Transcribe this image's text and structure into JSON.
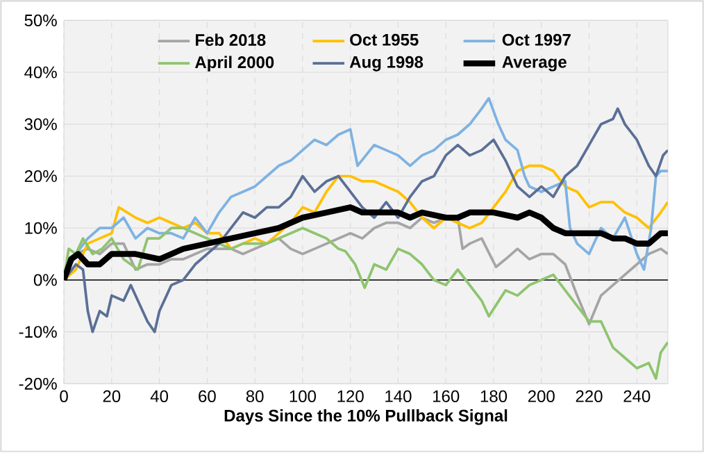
{
  "chart_data": {
    "type": "line",
    "xlabel": "Days Since the 10% Pullback Signal",
    "xlim": [
      0,
      253
    ],
    "xticks": [
      0,
      20,
      40,
      60,
      80,
      100,
      120,
      140,
      160,
      180,
      200,
      220,
      240
    ],
    "ylim": [
      -20,
      50
    ],
    "yticks": [
      {
        "value": -20,
        "label": "-20%"
      },
      {
        "value": -10,
        "label": "-10%"
      },
      {
        "value": 0,
        "label": "0%"
      },
      {
        "value": 10,
        "label": "10%"
      },
      {
        "value": 20,
        "label": "20%"
      },
      {
        "value": 30,
        "label": "30%"
      },
      {
        "value": 40,
        "label": "40%"
      },
      {
        "value": 50,
        "label": "50%"
      }
    ],
    "grid": true,
    "legend": "top",
    "ref_lines": [
      {
        "axis": "y",
        "value": 0,
        "color": "#000000"
      }
    ],
    "series": [
      {
        "name": "Feb 2018",
        "color": "#a5a5a5",
        "x": [
          0,
          5,
          10,
          15,
          20,
          25,
          30,
          35,
          40,
          45,
          50,
          55,
          60,
          65,
          70,
          75,
          80,
          85,
          90,
          95,
          100,
          105,
          110,
          115,
          120,
          125,
          130,
          135,
          140,
          145,
          150,
          155,
          160,
          165,
          167,
          170,
          175,
          181,
          185,
          190,
          195,
          200,
          205,
          210,
          215,
          220,
          225,
          230,
          235,
          240,
          245,
          250,
          253
        ],
        "values": [
          0,
          5,
          6,
          5,
          7,
          7,
          2,
          3,
          3,
          4,
          4,
          5,
          6,
          6,
          6,
          5,
          6,
          7,
          8,
          6,
          5,
          6,
          7,
          8,
          9,
          8,
          10,
          11,
          11,
          10,
          12,
          11,
          12,
          12,
          6,
          7,
          8,
          2.5,
          4,
          6,
          4,
          5,
          5,
          3,
          -3,
          -8.5,
          -3,
          -1,
          1,
          3,
          5,
          6,
          5
        ]
      },
      {
        "name": "Oct 1955",
        "color": "#ffc000",
        "x": [
          0,
          5,
          10,
          15,
          20,
          23,
          30,
          35,
          40,
          45,
          50,
          55,
          60,
          65,
          70,
          75,
          80,
          85,
          90,
          95,
          100,
          105,
          110,
          115,
          120,
          125,
          130,
          135,
          140,
          145,
          150,
          155,
          160,
          165,
          170,
          175,
          180,
          185,
          190,
          195,
          200,
          205,
          210,
          215,
          220,
          225,
          230,
          235,
          240,
          245,
          250,
          253
        ],
        "values": [
          0,
          2,
          7,
          8,
          9,
          14,
          12,
          11,
          12,
          11,
          10,
          11,
          9,
          9,
          6,
          7,
          8,
          7,
          9,
          11,
          14,
          13,
          17,
          20,
          20,
          19,
          19,
          18,
          17,
          15,
          12,
          10,
          12,
          11,
          10,
          11,
          14,
          17,
          21,
          22,
          22,
          21,
          18,
          17,
          14,
          15,
          15,
          13,
          12,
          10,
          13,
          15
        ]
      },
      {
        "name": "Oct 1997",
        "color": "#7eb2e2",
        "x": [
          0,
          5,
          10,
          15,
          20,
          25,
          30,
          35,
          40,
          45,
          50,
          55,
          60,
          65,
          70,
          75,
          80,
          85,
          90,
          95,
          100,
          105,
          110,
          115,
          120,
          123,
          130,
          135,
          140,
          145,
          150,
          155,
          160,
          165,
          170,
          175,
          178,
          182,
          185,
          190,
          193,
          195,
          200,
          205,
          210,
          212,
          215,
          220,
          225,
          230,
          235,
          240,
          243,
          246,
          248,
          250,
          253
        ],
        "values": [
          0,
          5,
          8,
          10,
          10,
          12,
          8,
          10,
          9,
          9,
          8,
          12,
          9,
          13,
          16,
          17,
          18,
          20,
          22,
          23,
          25,
          27,
          26,
          28,
          29,
          22,
          26,
          25,
          24,
          22,
          24,
          25,
          27,
          28,
          30,
          33,
          35,
          30,
          27,
          25,
          20,
          18,
          17,
          18,
          19,
          10,
          7,
          5,
          10,
          8,
          12,
          5,
          2,
          10,
          20,
          21,
          21
        ]
      },
      {
        "name": "April 2000",
        "color": "#8fc46f",
        "x": [
          0,
          2,
          5,
          8,
          12,
          16,
          20,
          25,
          31,
          35,
          40,
          45,
          50,
          55,
          60,
          65,
          70,
          75,
          80,
          85,
          90,
          95,
          100,
          105,
          110,
          115,
          118,
          122,
          126,
          130,
          135,
          140,
          145,
          150,
          155,
          160,
          165,
          170,
          175,
          178,
          185,
          190,
          195,
          200,
          205,
          210,
          215,
          220,
          225,
          230,
          235,
          240,
          245,
          248,
          250,
          253
        ],
        "values": [
          0,
          6,
          5,
          8,
          5,
          6,
          8,
          4,
          2,
          8,
          8,
          10,
          10,
          9,
          8,
          7,
          6,
          7,
          7,
          7,
          8,
          9,
          10,
          9,
          8,
          6,
          5.5,
          3,
          -1.5,
          3,
          2,
          6,
          5,
          3,
          0,
          -1,
          2,
          -1,
          -4,
          -7,
          -2,
          -3,
          -1,
          0,
          1,
          -2,
          -5,
          -8,
          -8,
          -13,
          -15,
          -17,
          -16,
          -19,
          -14,
          -12
        ]
      },
      {
        "name": "Aug 1998",
        "color": "#5b6f96",
        "x": [
          0,
          5,
          8,
          10,
          12,
          15,
          18,
          20,
          25,
          28,
          30,
          35,
          38,
          40,
          45,
          50,
          55,
          60,
          65,
          70,
          75,
          80,
          85,
          90,
          95,
          100,
          105,
          110,
          115,
          120,
          125,
          130,
          135,
          140,
          145,
          150,
          155,
          160,
          165,
          170,
          175,
          180,
          185,
          190,
          195,
          200,
          205,
          210,
          215,
          220,
          225,
          230,
          232,
          235,
          240,
          245,
          248,
          251,
          253
        ],
        "values": [
          0,
          3,
          2,
          -6,
          -10,
          -6,
          -7,
          -3,
          -4,
          -1,
          -3,
          -8,
          -10,
          -6,
          -1,
          0,
          3,
          5,
          7,
          10,
          13,
          12,
          14,
          14,
          16,
          20,
          17,
          19,
          20,
          17,
          14,
          12,
          15,
          12,
          16,
          19,
          20,
          24,
          26,
          24,
          25,
          27,
          23,
          18,
          16,
          18,
          16,
          20,
          22,
          26,
          30,
          31,
          33,
          30,
          27,
          22,
          20,
          24,
          25
        ]
      },
      {
        "name": "Average",
        "color": "#000000",
        "x": [
          0,
          3,
          6,
          10,
          15,
          20,
          30,
          40,
          50,
          60,
          70,
          80,
          90,
          100,
          110,
          120,
          125,
          130,
          140,
          145,
          150,
          160,
          165,
          170,
          180,
          190,
          195,
          200,
          205,
          210,
          215,
          220,
          225,
          230,
          235,
          240,
          245,
          250,
          253
        ],
        "values": [
          0,
          4,
          5,
          3,
          3,
          5,
          5,
          4,
          6,
          7,
          8,
          9,
          10,
          12,
          13,
          14,
          13,
          13,
          13,
          12,
          13,
          12,
          12,
          13,
          13,
          12,
          13,
          12,
          10,
          9,
          9,
          9,
          9,
          8,
          8,
          7,
          7,
          9,
          9
        ]
      }
    ]
  }
}
